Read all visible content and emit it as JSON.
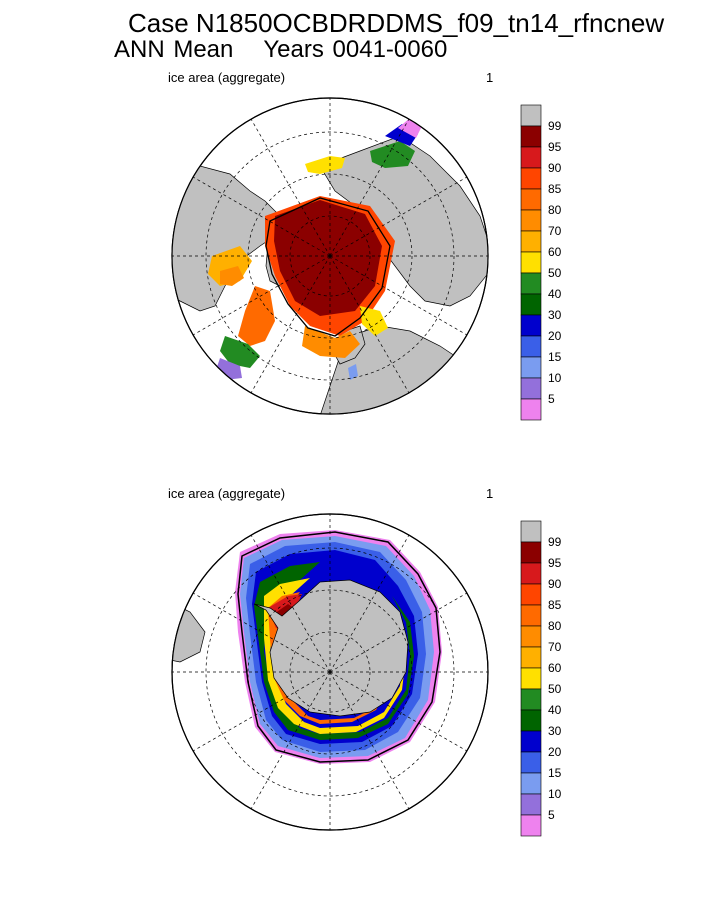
{
  "title": {
    "line1": "Case N1850OCBDRDDMS_f09_tn14_rfncnew",
    "line2_a": "ANN Mean",
    "line2_b": "Years 0041-0060"
  },
  "colorbar": {
    "levels": [
      "99",
      "95",
      "90",
      "85",
      "80",
      "70",
      "60",
      "50",
      "40",
      "30",
      "20",
      "15",
      "10",
      "5"
    ],
    "colors": [
      "#c0c0c0",
      "#8b0000",
      "#d7191c",
      "#ff4500",
      "#ff6a00",
      "#ff8c00",
      "#ffb000",
      "#ffe000",
      "#228b22",
      "#006400",
      "#0000cd",
      "#3a5fe8",
      "#7a9cf0",
      "#9370db",
      "#ee82ee"
    ]
  },
  "chart_data": [
    {
      "type": "heatmap",
      "title": "ice area  (aggregate)",
      "label_right": "1",
      "region": "Northern Hemisphere polar stereographic"
    },
    {
      "type": "heatmap",
      "title": "ice area  (aggregate)",
      "label_right": "1",
      "region": "Southern Hemisphere polar stereographic"
    }
  ]
}
